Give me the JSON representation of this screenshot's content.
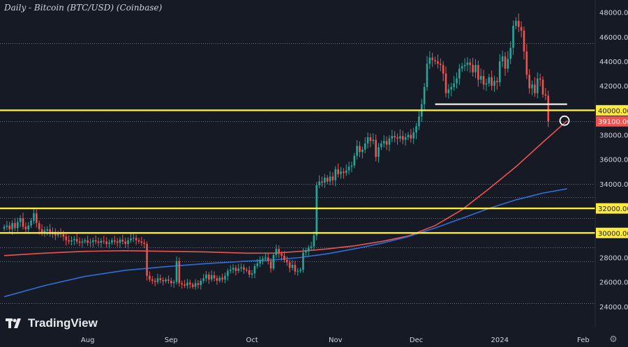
{
  "title": "Daily - Bitcoin (BTC/USD) (Coinbase)",
  "brand": {
    "name": "TradingView",
    "logo_text": "TV"
  },
  "colors": {
    "background": "#161a25",
    "grid": "#6b6f7a",
    "axis_text": "#d1d4dc",
    "bull": "#26a69a",
    "bear": "#ef5350",
    "support": "#ffeb3b",
    "ema_red": "#ef5350",
    "ema_blue": "#2f6fd6",
    "marker": "#ffffff"
  },
  "chart_data": {
    "type": "candlestick",
    "title": "Daily - Bitcoin (BTC/USD) (Coinbase)",
    "ylim": [
      22400,
      49000
    ],
    "y_ticks": [
      24000,
      26000,
      28000,
      30000,
      32000,
      34000,
      36000,
      38000,
      40000,
      42000,
      44000,
      46000,
      48000
    ],
    "x_ticks": [
      {
        "label": "Aug",
        "day": 31
      },
      {
        "label": "Sep",
        "day": 62
      },
      {
        "label": "Oct",
        "day": 92
      },
      {
        "label": "Nov",
        "day": 123
      },
      {
        "label": "Dec",
        "day": 153
      },
      {
        "label": "2024",
        "day": 184
      },
      {
        "label": "Feb",
        "day": 215
      }
    ],
    "dotted_levels": [
      24300,
      27700,
      28800,
      30000,
      31200,
      32900,
      34000,
      39100,
      45500
    ],
    "horizontal_levels": [
      {
        "value": 40000,
        "label": "40000.00",
        "color": "#ffeb3b"
      },
      {
        "value": 32000,
        "label": "32000.00",
        "color": "#ffeb3b"
      },
      {
        "value": 30000,
        "label": "30000.00",
        "color": "#ffeb3b"
      }
    ],
    "price_marker": {
      "value": 39100,
      "label": "39100.00"
    },
    "support_segment": {
      "from_day": 160,
      "to_day": 209,
      "value": 40500
    },
    "circle_marker": {
      "day": 207,
      "value": 39100
    },
    "candles": {
      "start_day": 0,
      "closes": [
        30500,
        30600,
        30300,
        30800,
        30400,
        30900,
        31200,
        30500,
        30300,
        30600,
        31000,
        31600,
        30800,
        30300,
        30000,
        30200,
        30300,
        29900,
        30100,
        29800,
        30000,
        29900,
        29700,
        29400,
        29300,
        29400,
        29500,
        29300,
        29200,
        29300,
        29400,
        29200,
        29250,
        29400,
        29300,
        29200,
        29350,
        29300,
        29100,
        29200,
        29400,
        29300,
        29200,
        29450,
        29300,
        29100,
        29400,
        29550,
        29600,
        29400,
        29300,
        29200,
        29100,
        26500,
        26200,
        26100,
        26000,
        26300,
        26150,
        26050,
        26200,
        26100,
        25900,
        26000,
        27700,
        25900,
        25800,
        25700,
        25950,
        25800,
        25600,
        25900,
        25750,
        26100,
        26300,
        26600,
        26200,
        26550,
        26300,
        26100,
        26350,
        26200,
        26500,
        26900,
        27000,
        27150,
        26900,
        27100,
        27200,
        27000,
        26950,
        26600,
        26700,
        27300,
        27500,
        27800,
        27900,
        28000,
        27700,
        27100,
        28200,
        28700,
        28300,
        28150,
        27800,
        27600,
        27150,
        27400,
        26850,
        26900,
        27000,
        28400,
        28500,
        28800,
        28900,
        29800,
        33900,
        34200,
        34100,
        34500,
        34200,
        34600,
        34300,
        35200,
        34800,
        35000,
        34900,
        35100,
        35400,
        35500,
        36300,
        37100,
        36600,
        36800,
        37300,
        37800,
        37500,
        37600,
        36200,
        37000,
        37300,
        37500,
        37200,
        37700,
        37900,
        37800,
        37700,
        37900,
        37600,
        37800,
        38000,
        37700,
        38200,
        38700,
        39500,
        40500,
        41900,
        43800,
        44300,
        44100,
        44000,
        43800,
        43700,
        43000,
        41400,
        41700,
        41900,
        42200,
        42600,
        43400,
        43600,
        43700,
        43900,
        43700,
        43100,
        43700,
        42500,
        42800,
        42100,
        42200,
        42700,
        42000,
        42400,
        42300,
        44000,
        44400,
        43400,
        44200,
        45100,
        46900,
        47300,
        46800,
        46500,
        44800,
        42900,
        41800,
        42100,
        41400,
        42600,
        42500,
        41300,
        41200,
        39100
      ],
      "daily_range_pct": 0.018
    },
    "series": [
      {
        "name": "EMA (red)",
        "color": "#ef5350",
        "points": [
          [
            0,
            28150
          ],
          [
            15,
            28350
          ],
          [
            30,
            28500
          ],
          [
            45,
            28550
          ],
          [
            60,
            28500
          ],
          [
            75,
            28450
          ],
          [
            90,
            28350
          ],
          [
            100,
            28350
          ],
          [
            110,
            28500
          ],
          [
            120,
            28700
          ],
          [
            130,
            28950
          ],
          [
            140,
            29300
          ],
          [
            150,
            29750
          ],
          [
            160,
            30600
          ],
          [
            170,
            31900
          ],
          [
            180,
            33600
          ],
          [
            190,
            35400
          ],
          [
            200,
            37400
          ],
          [
            209,
            39150
          ]
        ]
      },
      {
        "name": "EMA (blue)",
        "color": "#2f6fd6",
        "points": [
          [
            0,
            24800
          ],
          [
            15,
            25700
          ],
          [
            30,
            26450
          ],
          [
            45,
            26950
          ],
          [
            60,
            27250
          ],
          [
            75,
            27500
          ],
          [
            90,
            27700
          ],
          [
            100,
            27800
          ],
          [
            110,
            28000
          ],
          [
            120,
            28300
          ],
          [
            130,
            28700
          ],
          [
            140,
            29150
          ],
          [
            150,
            29700
          ],
          [
            160,
            30400
          ],
          [
            170,
            31200
          ],
          [
            180,
            32000
          ],
          [
            190,
            32700
          ],
          [
            200,
            33250
          ],
          [
            209,
            33600
          ]
        ]
      }
    ]
  }
}
